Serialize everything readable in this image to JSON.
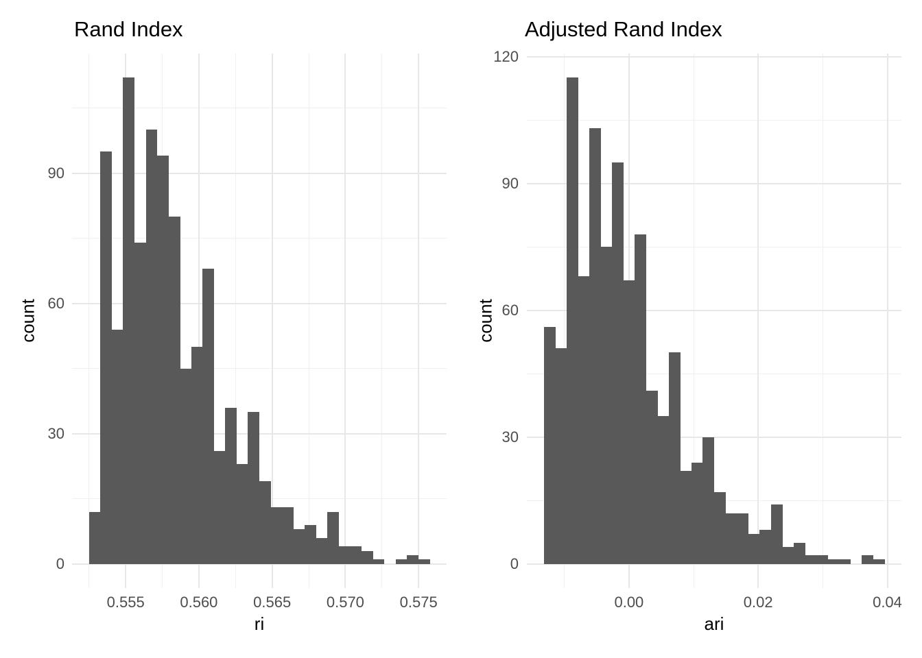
{
  "figure": {
    "kind": "ggplot-histogram-pair",
    "background": "#FFFFFF"
  },
  "colors": {
    "bar_fill": "#595959",
    "grid_major": "#E7E7E7",
    "grid_minor": "#F0F0F0",
    "tick_text": "#4D4D4D",
    "title_text": "#000000"
  },
  "chart_data": [
    {
      "type": "bar",
      "subtype": "histogram",
      "title": "Rand Index",
      "xlabel": "ri",
      "ylabel": "count",
      "bin_start": 0.5525,
      "bin_width": 0.000775,
      "counts": [
        12,
        95,
        54,
        112,
        74,
        100,
        94,
        80,
        45,
        50,
        68,
        26,
        36,
        23,
        35,
        19,
        13,
        13,
        8,
        9,
        6,
        12,
        4,
        4,
        3,
        1,
        0,
        1,
        2,
        1
      ],
      "n_total": 1000,
      "x_major_ticks": [
        0.555,
        0.56,
        0.565,
        0.57,
        0.575
      ],
      "x_tick_labels": [
        "0.555",
        "0.560",
        "0.565",
        "0.570",
        "0.575"
      ],
      "y_major_ticks": [
        0,
        30,
        60,
        90
      ],
      "y_tick_labels": [
        "0",
        "30",
        "60",
        "90"
      ],
      "xlim": [
        0.55134,
        0.57691
      ],
      "ylim": [
        -5.6,
        117.6
      ],
      "grid": "major+minor",
      "legend": "none"
    },
    {
      "type": "bar",
      "subtype": "histogram",
      "title": "Adjusted Rand Index",
      "xlabel": "ari",
      "ylabel": "count",
      "bin_start": -0.013174,
      "bin_width": 0.0017573,
      "counts": [
        56,
        51,
        115,
        68,
        103,
        75,
        95,
        67,
        78,
        41,
        35,
        50,
        22,
        24,
        30,
        17,
        12,
        12,
        7,
        8,
        14,
        4,
        5,
        2,
        2,
        1,
        1,
        0,
        2,
        1
      ],
      "n_total": 998,
      "x_major_ticks": [
        0.0,
        0.02,
        0.04
      ],
      "x_tick_labels": [
        "0.00",
        "0.02",
        "0.04"
      ],
      "y_major_ticks": [
        0,
        30,
        60,
        90,
        120
      ],
      "y_tick_labels": [
        "0",
        "30",
        "60",
        "90",
        "120"
      ],
      "xlim": [
        -0.01581,
        0.04218
      ],
      "ylim": [
        -5.75,
        120.75
      ],
      "grid": "major+minor",
      "legend": "none"
    }
  ]
}
